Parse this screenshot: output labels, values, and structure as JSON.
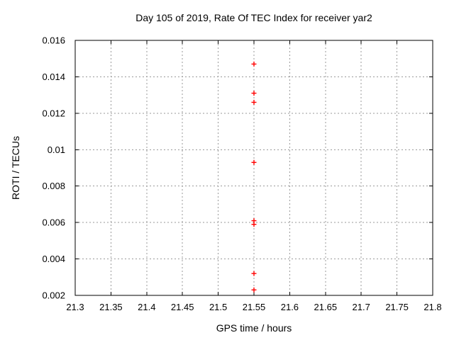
{
  "window": {
    "background": "#ffffff"
  },
  "chart_data": {
    "type": "scatter",
    "title": "Day 105 of 2019, Rate Of TEC Index for receiver yar2",
    "xlabel": "GPS time / hours",
    "ylabel": "ROTI / TECUs",
    "xlim": [
      21.3,
      21.8
    ],
    "ylim": [
      0.002,
      0.016
    ],
    "xticks": [
      21.3,
      21.35,
      21.4,
      21.45,
      21.5,
      21.55,
      21.6,
      21.65,
      21.7,
      21.75,
      21.8
    ],
    "xtick_labels": [
      "21.3",
      "21.35",
      "21.4",
      "21.45",
      "21.5",
      "21.55",
      "21.6",
      "21.65",
      "21.7",
      "21.75",
      "21.8"
    ],
    "yticks": [
      0.002,
      0.004,
      0.006,
      0.008,
      0.01,
      0.012,
      0.014,
      0.016
    ],
    "ytick_labels": [
      "0.002",
      "0.004",
      "0.006",
      "0.008",
      "0.01",
      "0.012",
      "0.014",
      "0.016"
    ],
    "grid": true,
    "legend": "none",
    "marker": {
      "shape": "plus",
      "color": "#ff0000",
      "size": 7
    },
    "colors": {
      "grid": "#9a9a9a",
      "axis": "#000000",
      "text": "#000000"
    },
    "series": [
      {
        "name": "ROTI",
        "points": [
          [
            21.55,
            0.0147
          ],
          [
            21.55,
            0.0131
          ],
          [
            21.55,
            0.0126
          ],
          [
            21.55,
            0.0093
          ],
          [
            21.55,
            0.0061
          ],
          [
            21.55,
            0.0059
          ],
          [
            21.55,
            0.0032
          ],
          [
            21.55,
            0.0023
          ]
        ]
      }
    ]
  }
}
